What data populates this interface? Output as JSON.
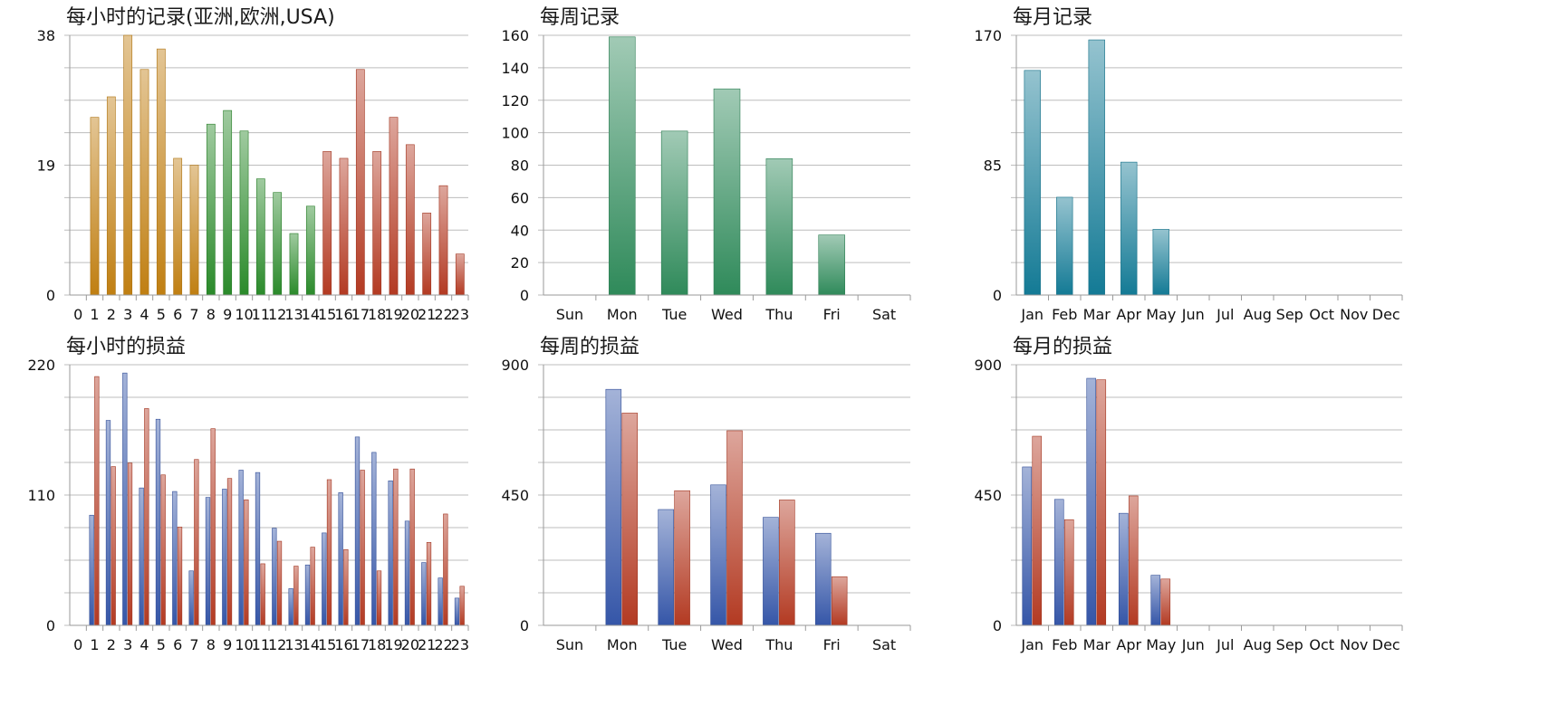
{
  "chart_data": [
    {
      "id": "hourly-records",
      "type": "bar",
      "title": "每小时的记录(亚洲,欧洲,USA)",
      "categories": [
        "0",
        "1",
        "2",
        "3",
        "4",
        "5",
        "6",
        "7",
        "8",
        "9",
        "10",
        "11",
        "12",
        "13",
        "14",
        "15",
        "16",
        "17",
        "18",
        "19",
        "20",
        "21",
        "22",
        "23"
      ],
      "ylim": [
        0,
        38
      ],
      "yticks": [
        0,
        19,
        38
      ],
      "series": [
        {
          "values": [
            0,
            26,
            29,
            38,
            33,
            36,
            20,
            19,
            25,
            27,
            24,
            17,
            15,
            9,
            13,
            21,
            20,
            33,
            21,
            26,
            22,
            12,
            16,
            6
          ]
        }
      ],
      "bar_colors": [
        "#c07f12",
        "#c07f12",
        "#c07f12",
        "#c07f12",
        "#c07f12",
        "#c07f12",
        "#c07f12",
        "#c07f12",
        "#2a8a2a",
        "#2a8a2a",
        "#2a8a2a",
        "#2a8a2a",
        "#2a8a2a",
        "#2a8a2a",
        "#2a8a2a",
        "#b33a22",
        "#b33a22",
        "#b33a22",
        "#b33a22",
        "#b33a22",
        "#b33a22",
        "#b33a22",
        "#b33a22",
        "#b33a22"
      ],
      "grid": true
    },
    {
      "id": "weekly-records",
      "type": "bar",
      "title": "每周记录",
      "categories": [
        "Sun",
        "Mon",
        "Tue",
        "Wed",
        "Thu",
        "Fri",
        "Sat"
      ],
      "ylim": [
        0,
        160
      ],
      "yticks": [
        0,
        20,
        40,
        60,
        80,
        100,
        120,
        140,
        160
      ],
      "series": [
        {
          "values": [
            0,
            159,
            101,
            127,
            84,
            37,
            0
          ],
          "color": "#2f8a5a"
        }
      ],
      "grid": true
    },
    {
      "id": "monthly-records",
      "type": "bar",
      "title": "每月记录",
      "categories": [
        "Jan",
        "Feb",
        "Mar",
        "Apr",
        "May",
        "Jun",
        "Jul",
        "Aug",
        "Sep",
        "Oct",
        "Nov",
        "Dec"
      ],
      "ylim": [
        0,
        170
      ],
      "yticks": [
        0,
        85,
        170
      ],
      "series": [
        {
          "values": [
            147,
            64,
            167,
            87,
            43,
            0,
            0,
            0,
            0,
            0,
            0,
            0
          ],
          "color": "#137a95"
        }
      ],
      "grid": true
    },
    {
      "id": "hourly-pnl",
      "type": "bar",
      "title": "每小时的损益",
      "categories": [
        "0",
        "1",
        "2",
        "3",
        "4",
        "5",
        "6",
        "7",
        "8",
        "9",
        "10",
        "11",
        "12",
        "13",
        "14",
        "15",
        "16",
        "17",
        "18",
        "19",
        "20",
        "21",
        "22",
        "23"
      ],
      "ylim": [
        0,
        220
      ],
      "yticks": [
        0,
        110,
        220
      ],
      "series": [
        {
          "values": [
            0,
            93,
            173,
            213,
            116,
            174,
            113,
            46,
            108,
            115,
            131,
            129,
            82,
            31,
            51,
            78,
            112,
            159,
            146,
            122,
            88,
            53,
            40,
            23
          ],
          "color": "#3556a8"
        },
        {
          "values": [
            0,
            210,
            134,
            137,
            183,
            127,
            83,
            140,
            166,
            124,
            106,
            52,
            71,
            50,
            66,
            123,
            64,
            131,
            46,
            132,
            132,
            70,
            94,
            33
          ],
          "color": "#b33a22"
        }
      ],
      "grid": true
    },
    {
      "id": "weekly-pnl",
      "type": "bar",
      "title": "每周的损益",
      "categories": [
        "Sun",
        "Mon",
        "Tue",
        "Wed",
        "Thu",
        "Fri",
        "Sat"
      ],
      "ylim": [
        0,
        900
      ],
      "yticks": [
        0,
        450,
        900
      ],
      "series": [
        {
          "values": [
            0,
            815,
            400,
            485,
            373,
            318,
            0
          ],
          "color": "#3556a8"
        },
        {
          "values": [
            0,
            733,
            465,
            672,
            433,
            168,
            0
          ],
          "color": "#b33a22"
        }
      ],
      "grid": true
    },
    {
      "id": "monthly-pnl",
      "type": "bar",
      "title": "每月的损益",
      "categories": [
        "Jan",
        "Feb",
        "Mar",
        "Apr",
        "May",
        "Jun",
        "Jul",
        "Aug",
        "Sep",
        "Oct",
        "Nov",
        "Dec"
      ],
      "ylim": [
        0,
        900
      ],
      "yticks": [
        0,
        450,
        900
      ],
      "series": [
        {
          "values": [
            547,
            435,
            853,
            387,
            173,
            0,
            0,
            0,
            0,
            0,
            0,
            0
          ],
          "color": "#3556a8"
        },
        {
          "values": [
            653,
            365,
            848,
            447,
            160,
            0,
            0,
            0,
            0,
            0,
            0,
            0
          ],
          "color": "#b33a22"
        }
      ],
      "grid": true
    }
  ]
}
